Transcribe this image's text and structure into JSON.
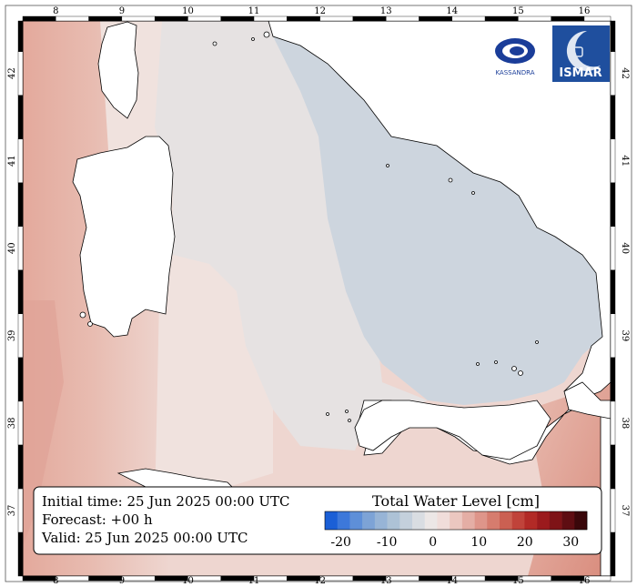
{
  "map": {
    "lon_ticks": [
      "8",
      "9",
      "10",
      "11",
      "12",
      "13",
      "14",
      "15",
      "16"
    ],
    "lat_ticks": [
      "37",
      "38",
      "39",
      "40",
      "41",
      "42"
    ],
    "lon_range": [
      7.5,
      16.4
    ],
    "lat_range": [
      36.25,
      42.6
    ]
  },
  "info": {
    "initial_time": "Initial time: 25 Jun 2025 00:00 UTC",
    "forecast": "Forecast: +00 h",
    "valid": "Valid: 25 Jun 2025 00:00 UTC"
  },
  "colorbar": {
    "title": "Total Water Level [cm]",
    "tick_labels": [
      "-20",
      "-10",
      "0",
      "10",
      "20",
      "30"
    ],
    "colors": [
      "#1b5fd6",
      "#3d78da",
      "#5e8fd8",
      "#7da3d6",
      "#97b4d6",
      "#adc2d6",
      "#c4d0dc",
      "#d9dde2",
      "#ece7e6",
      "#f0ddda",
      "#ebc7c0",
      "#e4aea5",
      "#de958a",
      "#d67c6e",
      "#cb6052",
      "#c0433a",
      "#b22a26",
      "#9b1a1d",
      "#7e1317",
      "#5e0d12",
      "#3a070a"
    ]
  },
  "logos": {
    "kassandra": "KASSANDRA",
    "ismar": "ISMAR"
  }
}
